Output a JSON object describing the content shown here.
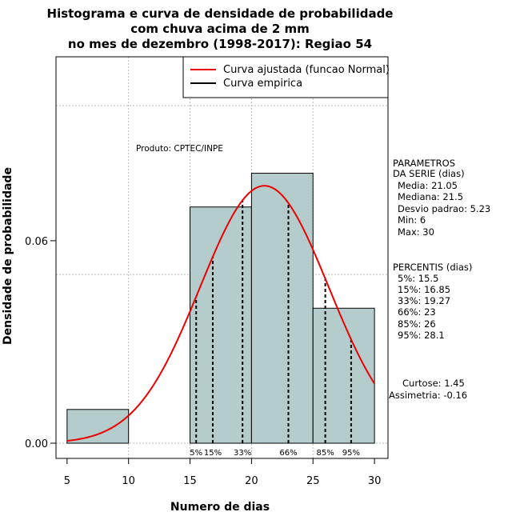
{
  "chart_data": {
    "type": "bar",
    "title_lines": [
      "Histograma e curva de densidade de probabilidade",
      "com chuva acima de 2 mm",
      "no mes de dezembro (1998-2017): Regiao 54"
    ],
    "xlabel": "Numero de dias",
    "ylabel": "Densidade de probabilidade",
    "xlim": [
      4.1,
      31.1
    ],
    "ylim": [
      -0.0045,
      0.1145
    ],
    "x_ticks": [
      5,
      10,
      15,
      20,
      25,
      30
    ],
    "x_tick_labels": [
      "5",
      "10",
      "15",
      "20",
      "25",
      "30"
    ],
    "y_ticks": [
      0,
      0.06
    ],
    "y_tick_labels": [
      "0.00",
      "0.06"
    ],
    "grid_x": [
      10,
      15,
      20,
      25
    ],
    "grid_y": [
      0.05,
      0.1
    ],
    "bins": [
      {
        "x0": 5,
        "x1": 10,
        "density": 0.01
      },
      {
        "x0": 10,
        "x1": 15,
        "density": 0.0
      },
      {
        "x0": 15,
        "x1": 20,
        "density": 0.07
      },
      {
        "x0": 20,
        "x1": 25,
        "density": 0.08
      },
      {
        "x0": 25,
        "x1": 30,
        "density": 0.04
      }
    ],
    "bar_color": "#b4cccc",
    "normal_fit": {
      "mean": 21.05,
      "sd": 5.23,
      "x_range": [
        5,
        30
      ],
      "color": "#ee0000"
    },
    "percentile_markers": [
      {
        "x": 15.5,
        "label": "5%"
      },
      {
        "x": 16.85,
        "label": "15%"
      },
      {
        "x": 19.27,
        "label": "33%"
      },
      {
        "x": 23,
        "label": "66%"
      },
      {
        "x": 26,
        "label": "85%"
      },
      {
        "x": 28.1,
        "label": "95%"
      }
    ],
    "legend": [
      {
        "label": "Curva ajustada (funcao Normal)",
        "color": "#ee0000"
      },
      {
        "label": "Curva empirica",
        "color": "#000000"
      }
    ],
    "legend_position": "top-right",
    "credit": "Produto: CPTEC/INPE",
    "side_panel": {
      "params_header": [
        "PARAMETROS",
        "DA SERIE (dias)"
      ],
      "params": [
        "Media: 21.05",
        "Mediana: 21.5",
        "Desvio padrao: 5.23",
        "Min: 6",
        "Max: 30"
      ],
      "pct_header": "PERCENTIS (dias)",
      "pcts": [
        "5%: 15.5",
        "15%: 16.85",
        "33%: 19.27",
        "66%: 23",
        "85%: 26",
        "95%: 28.1"
      ],
      "stats": [
        "Curtose: 1.45",
        "Assimetria: -0.16"
      ]
    }
  }
}
